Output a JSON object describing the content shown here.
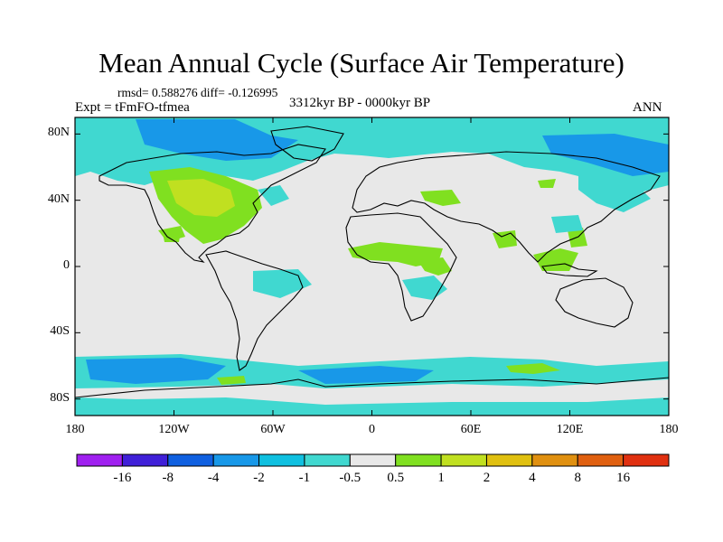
{
  "title": "Mean Annual Cycle (Surface Air Temperature)",
  "stats": "rmsd= 0.588276 diff= -0.126995",
  "experiment": "Expt = tFmFO-tfmea",
  "period": "3312kyr BP - 0000kyr BP",
  "season": "ANN",
  "lat_ticks": [
    {
      "label": "80N",
      "value": 80
    },
    {
      "label": "40N",
      "value": 40
    },
    {
      "label": "0",
      "value": 0
    },
    {
      "label": "40S",
      "value": -40
    },
    {
      "label": "80S",
      "value": -80
    }
  ],
  "lon_ticks": [
    {
      "label": "180",
      "value": -180
    },
    {
      "label": "120W",
      "value": -120
    },
    {
      "label": "60W",
      "value": -60
    },
    {
      "label": "0",
      "value": 0
    },
    {
      "label": "60E",
      "value": 60
    },
    {
      "label": "120E",
      "value": 120
    },
    {
      "label": "180",
      "value": 180
    }
  ],
  "colorbar": {
    "colors": [
      "#a020f0",
      "#4020d8",
      "#1060e0",
      "#1898e8",
      "#10c0e0",
      "#40d8d0",
      "#e8e8e8",
      "#80e020",
      "#c0e020",
      "#e0c010",
      "#e09010",
      "#e06010",
      "#e03010"
    ],
    "labels": [
      "-16",
      "-8",
      "-4",
      "-2",
      "-1",
      "-0.5",
      "0.5",
      "1",
      "2",
      "4",
      "8",
      "16"
    ]
  }
}
